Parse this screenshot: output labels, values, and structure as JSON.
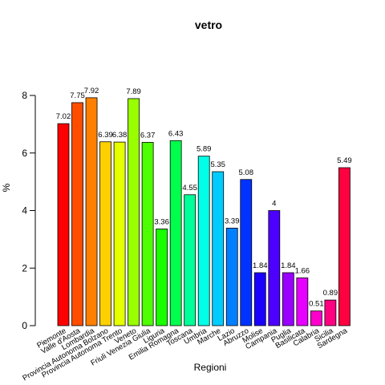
{
  "chart_data": {
    "type": "bar",
    "title": "vetro",
    "xlabel": "Regioni",
    "ylabel": "%",
    "ylim": [
      0,
      8.6
    ],
    "yticks": [
      0,
      2,
      4,
      6,
      8
    ],
    "grid": false,
    "categories": [
      "Piemonte",
      "Valle d'Aosta",
      "Lombardia",
      "Provincia Autonoma Bolzano",
      "Provincia Autonoma Trento",
      "Veneto",
      "Friuli Venezia Giulia",
      "Liguria",
      "Emilia Romagna",
      "Toscana",
      "Umbria",
      "Marche",
      "Lazio",
      "Abruzzo",
      "Molise",
      "Campania",
      "Puglia",
      "Basilicata",
      "Calabria",
      "Sicilia",
      "Sardegna"
    ],
    "values": [
      7.02,
      7.75,
      7.92,
      6.39,
      6.38,
      7.89,
      6.37,
      3.36,
      6.43,
      4.55,
      5.89,
      5.35,
      3.39,
      5.08,
      1.84,
      4,
      1.84,
      1.66,
      0.51,
      0.89,
      5.49
    ],
    "value_labels": [
      "7.02",
      "7.75",
      "7.92",
      "6.39",
      "6.38",
      "7.89",
      "6.37",
      "3.36",
      "6.43",
      "4.55",
      "5.89",
      "5.35",
      "3.39",
      "5.08",
      "1.84",
      "4",
      "1.84",
      "1.66",
      "0.51",
      "0.89",
      "5.49"
    ],
    "colors": [
      "#FF0000",
      "#FF4D00",
      "#FF8000",
      "#FFD000",
      "#E6FF00",
      "#99FF00",
      "#4DFF00",
      "#1AFF00",
      "#00FF4D",
      "#00FF99",
      "#00FFE6",
      "#00CCFF",
      "#0080FF",
      "#0033FF",
      "#1A00FF",
      "#4D00FF",
      "#9900FF",
      "#E600FF",
      "#FF00CC",
      "#FF0080",
      "#FF0040"
    ]
  }
}
